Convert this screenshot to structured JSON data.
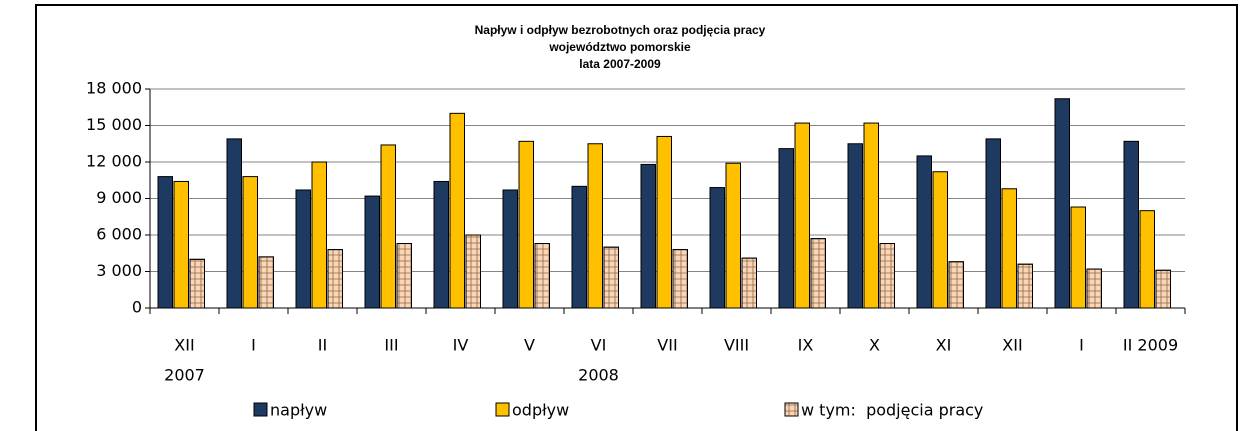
{
  "chart_data": {
    "type": "bar",
    "title": "Napływ i odpływ bezrobotnych oraz podjęcia pracy",
    "subtitle": [
      "województwo pomorskie",
      "lata 2007-2009"
    ],
    "categories": [
      "XII",
      "I",
      "II",
      "III",
      "IV",
      "V",
      "VI",
      "VII",
      "VIII",
      "IX",
      "X",
      "XI",
      "XII",
      "I",
      "II 2009"
    ],
    "x_group_labels": [
      "2007",
      "2008"
    ],
    "series": [
      {
        "name": "napływ",
        "color": "#1f3a60",
        "values": [
          10800,
          13900,
          9700,
          9200,
          10400,
          9700,
          10000,
          11800,
          9900,
          13100,
          13500,
          12500,
          13900,
          17200,
          13700
        ]
      },
      {
        "name": "odpływ",
        "color": "#ffc000",
        "values": [
          10400,
          10800,
          12000,
          13400,
          16000,
          13700,
          13500,
          14100,
          11900,
          15200,
          15200,
          11200,
          9800,
          8300,
          8000
        ]
      },
      {
        "name": "w tym:  podjęcia pracy",
        "color": "#fcd5b4",
        "values": [
          4000,
          4200,
          4800,
          5300,
          6000,
          5300,
          5000,
          4800,
          4100,
          5700,
          5300,
          3800,
          3600,
          3200,
          3100
        ]
      }
    ],
    "ylim": [
      0,
      18000
    ],
    "yticks": [
      0,
      {
        "value": 3000,
        "label": "3 000"
      },
      {
        "value": 6000,
        "label": "6 000"
      },
      {
        "value": 9000,
        "label": "9 000"
      },
      {
        "value": 12000,
        "label": "12 000"
      },
      {
        "value": 15000,
        "label": "15 000"
      },
      {
        "value": 18000,
        "label": "18 000"
      }
    ],
    "grid": true,
    "legend": "bottom"
  }
}
